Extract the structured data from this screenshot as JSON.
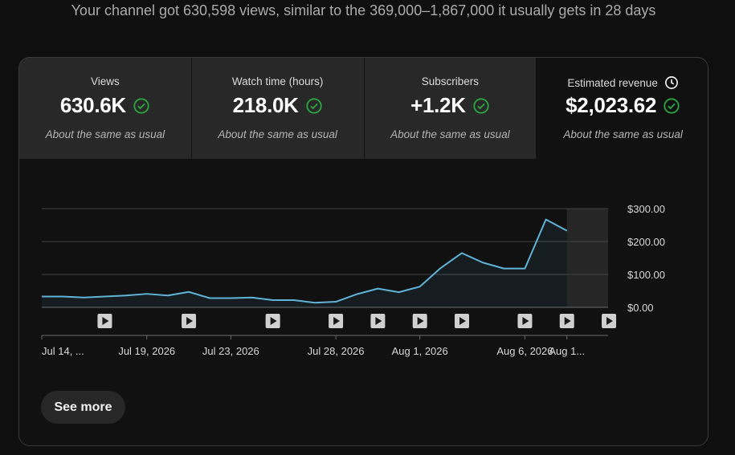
{
  "headline": "Your channel got 630,598 views, similar to the 369,000–1,867,000 it usually gets in 28 days",
  "metrics": [
    {
      "label": "Views",
      "value": "630.6K",
      "note": "About the same as usual"
    },
    {
      "label": "Watch time (hours)",
      "value": "218.0K",
      "note": "About the same as usual"
    },
    {
      "label": "Subscribers",
      "value": "+1.2K",
      "note": "About the same as usual"
    },
    {
      "label": "Estimated revenue",
      "value": "$2,023.62",
      "note": "About the same as usual"
    }
  ],
  "see_more_label": "See more",
  "colors": {
    "line": "#5fb3d6",
    "check": "#2ba640",
    "background": "#0f0f0f",
    "tile": "#282828"
  },
  "icons": [
    "check-circle-icon",
    "clock-icon",
    "play-icon"
  ],
  "chart_data": {
    "type": "area",
    "title": "",
    "series_name": "Estimated revenue",
    "x": [
      "Jul 14",
      "Jul 15",
      "Jul 16",
      "Jul 17",
      "Jul 18",
      "Jul 19",
      "Jul 20",
      "Jul 21",
      "Jul 22",
      "Jul 23",
      "Jul 24",
      "Jul 25",
      "Jul 26",
      "Jul 27",
      "Jul 28",
      "Jul 29",
      "Jul 30",
      "Jul 31",
      "Aug 1",
      "Aug 2",
      "Aug 3",
      "Aug 4",
      "Aug 5",
      "Aug 6",
      "Aug 7",
      "Aug 8"
    ],
    "values": [
      33,
      33,
      30,
      33,
      36,
      41,
      36,
      47,
      28,
      28,
      30,
      22,
      22,
      14,
      17,
      40,
      57,
      46,
      63,
      120,
      165,
      136,
      118,
      118,
      267,
      233
    ],
    "ylim": [
      0,
      300
    ],
    "y_ticks": [
      "$0.00",
      "$100.00",
      "$200.00",
      "$300.00"
    ],
    "y_tick_values": [
      0,
      100,
      200,
      300
    ],
    "x_tick_labels": [
      "Jul 14, ...",
      "Jul 19, 2026",
      "Jul 23, 2026",
      "Jul 28, 2026",
      "Aug 1, 2026",
      "Aug 6, 2026",
      "Aug 1..."
    ],
    "x_tick_dates": [
      "Jul 14",
      "Jul 19",
      "Jul 23",
      "Jul 28",
      "Aug 1",
      "Aug 6",
      "Aug 8"
    ],
    "video_markers": [
      "Jul 17",
      "Jul 21",
      "Jul 25",
      "Jul 28",
      "Jul 30",
      "Aug 1",
      "Aug 3",
      "Aug 6",
      "Aug 8",
      "Aug 10"
    ],
    "shaded_from": "Aug 8",
    "grid": true
  }
}
